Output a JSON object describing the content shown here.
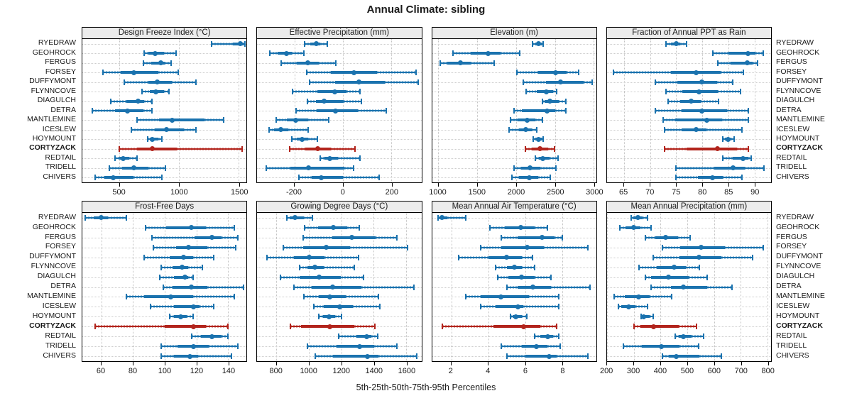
{
  "title": "Annual Climate: sibling",
  "footer": "5th-25th-50th-75th-95th Percentiles",
  "colors": {
    "series_blue": "#1a72ae",
    "series_blue_light": "rgba(26,114,174,0.42)",
    "highlight_red": "#b2241c",
    "highlight_red_light": "rgba(178,36,28,0.42)",
    "header_bg": "#ececec",
    "grid_dotted": "#c8c8c8",
    "border": "#000000"
  },
  "chart_data": {
    "type": "dot-whisker-percentiles",
    "percentiles": [
      5,
      25,
      50,
      75,
      95
    ],
    "sites": [
      "RYEDRAW",
      "GEOHROCK",
      "FERGUS",
      "FORSEY",
      "DUFFYMONT",
      "FLYNNCOVE",
      "DIAGULCH",
      "DETRA",
      "MANTLEMINE",
      "ICESLEW",
      "HOYMOUNT",
      "CORTYZACK",
      "REDTAIL",
      "TRIDELL",
      "CHIVERS"
    ],
    "highlight_site": "CORTYZACK",
    "site_labels_repeated_left_and_right": true,
    "panels": [
      {
        "title": "Design Freeze Index (°C)",
        "row": "top",
        "xlim": [
          190,
          1565
        ],
        "ticks": [
          500,
          1000,
          1500
        ],
        "values": [
          [
            1270,
            1450,
            1515,
            1540,
            1550
          ],
          [
            710,
            745,
            800,
            875,
            975
          ],
          [
            700,
            765,
            845,
            880,
            935
          ],
          [
            365,
            510,
            620,
            825,
            990
          ],
          [
            540,
            745,
            820,
            940,
            1140
          ],
          [
            690,
            755,
            805,
            875,
            915
          ],
          [
            425,
            560,
            655,
            710,
            775
          ],
          [
            275,
            465,
            570,
            700,
            775
          ],
          [
            650,
            835,
            940,
            1210,
            1375
          ],
          [
            600,
            795,
            895,
            1040,
            1140
          ],
          [
            735,
            755,
            775,
            825,
            855
          ],
          [
            500,
            650,
            775,
            980,
            1530
          ],
          [
            465,
            500,
            530,
            580,
            650
          ],
          [
            415,
            520,
            620,
            745,
            885
          ],
          [
            295,
            375,
            450,
            620,
            855
          ]
        ]
      },
      {
        "title": "Effective Precipitation (mm)",
        "row": "top",
        "xlim": [
          -353,
          324
        ],
        "ticks": [
          -200,
          0,
          200
        ],
        "values": [
          [
            -158,
            -135,
            -110,
            -93,
            -64
          ],
          [
            -300,
            -268,
            -232,
            -210,
            -160
          ],
          [
            -255,
            -190,
            -145,
            -98,
            -29
          ],
          [
            -150,
            -49,
            47,
            142,
            303
          ],
          [
            -137,
            -31,
            66,
            174,
            312
          ],
          [
            -207,
            -105,
            -34,
            15,
            71
          ],
          [
            -145,
            -112,
            -78,
            3,
            78
          ],
          [
            -193,
            -107,
            -29,
            63,
            179
          ],
          [
            -274,
            -230,
            -193,
            -144,
            -57
          ],
          [
            -305,
            -283,
            -256,
            -225,
            -142
          ],
          [
            -210,
            -190,
            -168,
            -142,
            -105
          ],
          [
            -220,
            -156,
            -103,
            -49,
            49
          ],
          [
            -93,
            -76,
            -54,
            -20,
            70
          ],
          [
            -315,
            -215,
            -142,
            5,
            44
          ],
          [
            -181,
            -127,
            -90,
            0,
            151
          ]
        ]
      },
      {
        "title": "Elevation (m)",
        "row": "top",
        "xlim": [
          918,
          3030
        ],
        "ticks": [
          1000,
          1500,
          2000,
          2500,
          3000
        ],
        "values": [
          [
            2210,
            2245,
            2290,
            2330,
            2350
          ],
          [
            1190,
            1415,
            1635,
            1795,
            2050
          ],
          [
            1020,
            1110,
            1280,
            1415,
            1720
          ],
          [
            2005,
            2280,
            2510,
            2650,
            2800
          ],
          [
            2090,
            2385,
            2570,
            2870,
            2975
          ],
          [
            2125,
            2265,
            2385,
            2475,
            2525
          ],
          [
            2340,
            2370,
            2430,
            2550,
            2635
          ],
          [
            1970,
            2070,
            2400,
            2505,
            2640
          ],
          [
            1930,
            2020,
            2140,
            2250,
            2335
          ],
          [
            1910,
            2035,
            2120,
            2200,
            2265
          ],
          [
            2220,
            2245,
            2290,
            2330,
            2350
          ],
          [
            2120,
            2200,
            2310,
            2415,
            2490
          ],
          [
            2250,
            2295,
            2340,
            2430,
            2535
          ],
          [
            1970,
            2065,
            2180,
            2310,
            2515
          ],
          [
            1945,
            2035,
            2165,
            2280,
            2440
          ]
        ]
      },
      {
        "title": "Fraction of Annual PPT as Rain",
        "row": "top",
        "xlim": [
          61.7,
          93.2
        ],
        "ticks": [
          65,
          70,
          75,
          80,
          85,
          90
        ],
        "values": [
          [
            73,
            74,
            75,
            75.8,
            77
          ],
          [
            82,
            85,
            88.8,
            90.2,
            91.7
          ],
          [
            83,
            85.5,
            88.7,
            89.7,
            90.6
          ],
          [
            63,
            74,
            78.8,
            83.5,
            87.9
          ],
          [
            71,
            75.2,
            79.9,
            82.8,
            85.8
          ],
          [
            73,
            76.2,
            79.4,
            83,
            87.4
          ],
          [
            73.4,
            75.8,
            77.9,
            79.7,
            83.1
          ],
          [
            71,
            76.1,
            79.9,
            84.8,
            88.8
          ],
          [
            72.5,
            74.8,
            80.9,
            83.8,
            88.8
          ],
          [
            72.8,
            76.1,
            78.8,
            80.8,
            87.6
          ],
          [
            83.9,
            84.3,
            85,
            85.5,
            86.1
          ],
          [
            72.8,
            77,
            82.9,
            86.6,
            88.8
          ],
          [
            83.9,
            85.9,
            87.8,
            88.8,
            89.4
          ],
          [
            74.9,
            82.3,
            85.9,
            88.2,
            91.8
          ],
          [
            74.9,
            79.2,
            81.9,
            83.9,
            87.6
          ]
        ]
      },
      {
        "title": "Frost-Free Days",
        "row": "bottom",
        "xlim": [
          48,
          151.7
        ],
        "ticks": [
          60,
          80,
          100,
          120,
          140
        ],
        "values": [
          [
            50,
            55,
            60,
            64,
            76
          ],
          [
            88,
            101,
            117,
            126,
            144
          ],
          [
            92,
            119,
            130,
            136,
            146
          ],
          [
            93,
            107,
            115,
            127,
            145
          ],
          [
            87,
            103,
            112,
            118,
            131
          ],
          [
            98,
            105,
            111,
            115,
            124
          ],
          [
            97,
            106,
            113,
            115,
            118
          ],
          [
            99,
            105,
            117,
            127,
            150
          ],
          [
            76,
            87,
            104,
            118,
            144
          ],
          [
            91,
            106,
            118,
            122,
            131
          ],
          [
            103,
            106,
            110,
            114,
            118
          ],
          [
            56,
            100,
            118,
            126,
            140
          ],
          [
            117,
            123,
            130,
            136,
            140
          ],
          [
            98,
            108,
            118,
            128,
            146
          ],
          [
            98,
            106,
            116,
            121,
            142
          ]
        ]
      },
      {
        "title": "Growing Degree Days (°C)",
        "row": "bottom",
        "xlim": [
          681,
          1694
        ],
        "ticks": [
          800,
          1000,
          1200,
          1400,
          1600
        ],
        "values": [
          [
            863,
            880,
            913,
            968,
            1022
          ],
          [
            975,
            1055,
            1150,
            1235,
            1310
          ],
          [
            965,
            1145,
            1265,
            1410,
            1545
          ],
          [
            840,
            965,
            1105,
            1255,
            1610
          ],
          [
            740,
            907,
            1000,
            1097,
            1305
          ],
          [
            944,
            989,
            1037,
            1090,
            1278
          ],
          [
            826,
            944,
            1065,
            1199,
            1337
          ],
          [
            909,
            1018,
            1148,
            1322,
            1650
          ],
          [
            967,
            1061,
            1131,
            1228,
            1430
          ],
          [
            1032,
            1090,
            1189,
            1272,
            1438
          ],
          [
            1060,
            1087,
            1126,
            1163,
            1203
          ],
          [
            884,
            952,
            1131,
            1278,
            1406
          ],
          [
            1184,
            1293,
            1355,
            1387,
            1424
          ],
          [
            993,
            1170,
            1312,
            1402,
            1545
          ],
          [
            1037,
            1148,
            1363,
            1431,
            1665
          ]
        ]
      },
      {
        "title": "Mean Annual Air Temperature (°C)",
        "row": "bottom",
        "xlim": [
          0.96,
          9.84
        ],
        "ticks": [
          2,
          4,
          6,
          8
        ],
        "values": [
          [
            1.3,
            1.35,
            1.5,
            1.8,
            2.8
          ],
          [
            4.1,
            4.9,
            5.75,
            6.5,
            7.2
          ],
          [
            4.7,
            5.6,
            6.9,
            7.6,
            8.0
          ],
          [
            3.6,
            4.7,
            6.1,
            7.0,
            9.4
          ],
          [
            2.4,
            4.0,
            5.0,
            5.8,
            6.4
          ],
          [
            4.4,
            5.0,
            5.4,
            5.8,
            6.5
          ],
          [
            4.5,
            5.1,
            5.8,
            6.5,
            7.4
          ],
          [
            5.0,
            5.6,
            6.4,
            7.4,
            9.5
          ],
          [
            2.8,
            3.6,
            4.7,
            6.2,
            7.8
          ],
          [
            3.6,
            4.4,
            5.6,
            5.9,
            7.8
          ],
          [
            5.2,
            5.3,
            5.5,
            5.8,
            6.1
          ],
          [
            1.5,
            4.3,
            5.9,
            6.8,
            7.7
          ],
          [
            6.5,
            6.8,
            7.2,
            7.5,
            7.8
          ],
          [
            4.7,
            5.8,
            6.6,
            7.2,
            7.9
          ],
          [
            5.0,
            6.0,
            7.3,
            7.7,
            9.4
          ]
        ]
      },
      {
        "title": "Mean Annual Precipitation (mm)",
        "row": "bottom",
        "xlim": [
          199,
          814
        ],
        "ticks": [
          200,
          300,
          400,
          500,
          600,
          700,
          800
        ],
        "values": [
          [
            290,
            298,
            316,
            333,
            352
          ],
          [
            248,
            268,
            300,
            326,
            364
          ],
          [
            344,
            381,
            420,
            466,
            512
          ],
          [
            407,
            474,
            551,
            640,
            785
          ],
          [
            372,
            471,
            544,
            629,
            746
          ],
          [
            320,
            386,
            450,
            496,
            546
          ],
          [
            343,
            365,
            430,
            505,
            574
          ],
          [
            364,
            439,
            486,
            575,
            669
          ],
          [
            226,
            266,
            317,
            359,
            441
          ],
          [
            241,
            253,
            281,
            305,
            352
          ],
          [
            327,
            329,
            336,
            360,
            373
          ],
          [
            301,
            325,
            375,
            467,
            536
          ],
          [
            454,
            467,
            485,
            515,
            562
          ],
          [
            260,
            331,
            404,
            472,
            542
          ],
          [
            408,
            432,
            458,
            546,
            627
          ]
        ]
      }
    ]
  }
}
